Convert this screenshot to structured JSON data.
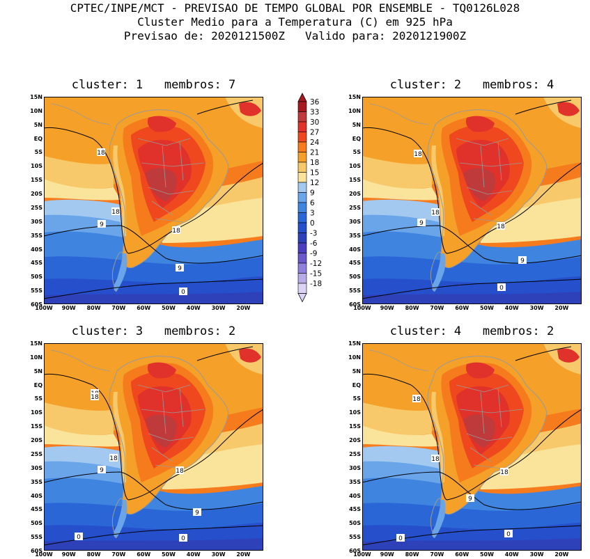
{
  "header": {
    "line1": "CPTEC/INPE/MCT - PREVISAO DE TEMPO GLOBAL POR ENSEMBLE - TQ0126L028",
    "line2": "Cluster Medio para a Temperatura (C) em 925 hPa",
    "line3": "Previsao de: 2020121500Z   Valido para: 2020121900Z"
  },
  "panels": [
    {
      "title": "cluster: 1   membros: 7",
      "contours": [
        {
          "label": "18"
        },
        {
          "label": "18"
        },
        {
          "label": "18"
        },
        {
          "label": "9"
        },
        {
          "label": "9"
        },
        {
          "label": "0"
        }
      ]
    },
    {
      "title": "cluster: 2   membros: 4",
      "contours": [
        {
          "label": "18"
        },
        {
          "label": "18"
        },
        {
          "label": "18"
        },
        {
          "label": "9"
        },
        {
          "label": "9"
        },
        {
          "label": "0"
        }
      ]
    },
    {
      "title": "cluster: 3   membros: 2",
      "contours": [
        {
          "label": "18"
        },
        {
          "label": "18"
        },
        {
          "label": "18"
        },
        {
          "label": "18"
        },
        {
          "label": "9"
        },
        {
          "label": "9"
        },
        {
          "label": "0"
        },
        {
          "label": "0"
        }
      ]
    },
    {
      "title": "cluster: 4   membros: 2",
      "contours": [
        {
          "label": "18"
        },
        {
          "label": "18"
        },
        {
          "label": "18"
        },
        {
          "label": "9"
        },
        {
          "label": "0"
        },
        {
          "label": "0"
        }
      ]
    }
  ],
  "lat_labels": [
    "15N",
    "10N",
    "5N",
    "EQ",
    "5S",
    "10S",
    "15S",
    "20S",
    "25S",
    "30S",
    "35S",
    "40S",
    "45S",
    "50S",
    "55S",
    "60S"
  ],
  "lon_labels": [
    "100W",
    "90W",
    "80W",
    "70W",
    "60W",
    "50W",
    "40W",
    "30W",
    "20W"
  ],
  "colorbar": {
    "labels": [
      "36",
      "33",
      "30",
      "27",
      "24",
      "21",
      "18",
      "15",
      "12",
      "9",
      "6",
      "3",
      "0",
      "-3",
      "-6",
      "-9",
      "-12",
      "-15",
      "-18"
    ],
    "colors": [
      "#a51a1f",
      "#bf3a3a",
      "#e0322a",
      "#f0481e",
      "#f57b1d",
      "#f5a029",
      "#f7c96a",
      "#fae39a",
      "#a3c9f0",
      "#6aa5ea",
      "#3f85e0",
      "#2a66d6",
      "#254fcb",
      "#2e41b9",
      "#4b3fc0",
      "#6a58cc",
      "#8f80db",
      "#b7abe8",
      "#dcd4f4"
    ]
  },
  "colors": {
    "coast": "#9a9a9a",
    "contour": "#000000"
  }
}
